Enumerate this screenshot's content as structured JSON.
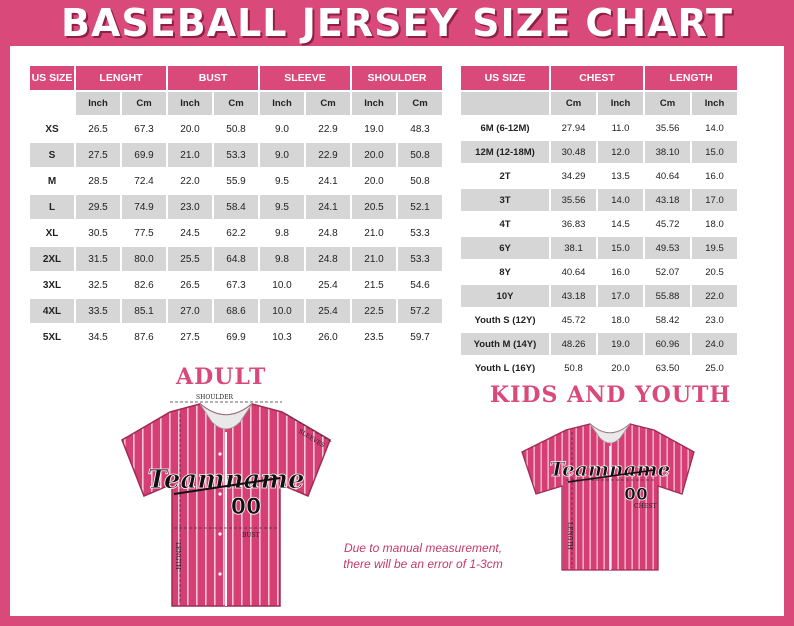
{
  "title": "BASEBALL JERSEY SIZE CHART",
  "adult": {
    "heading": "ADULT",
    "headers": [
      "US SIZE",
      "LENGHT",
      "BUST",
      "SLEEVE",
      "SHOULDER"
    ],
    "subheaders": [
      "Inch",
      "Cm",
      "Inch",
      "Cm",
      "Inch",
      "Cm",
      "Inch",
      "Cm"
    ],
    "rows": [
      [
        "XS",
        "26.5",
        "67.3",
        "20.0",
        "50.8",
        "9.0",
        "22.9",
        "19.0",
        "48.3"
      ],
      [
        "S",
        "27.5",
        "69.9",
        "21.0",
        "53.3",
        "9.0",
        "22.9",
        "20.0",
        "50.8"
      ],
      [
        "M",
        "28.5",
        "72.4",
        "22.0",
        "55.9",
        "9.5",
        "24.1",
        "20.0",
        "50.8"
      ],
      [
        "L",
        "29.5",
        "74.9",
        "23.0",
        "58.4",
        "9.5",
        "24.1",
        "20.5",
        "52.1"
      ],
      [
        "XL",
        "30.5",
        "77.5",
        "24.5",
        "62.2",
        "9.8",
        "24.8",
        "21.0",
        "53.3"
      ],
      [
        "2XL",
        "31.5",
        "80.0",
        "25.5",
        "64.8",
        "9.8",
        "24.8",
        "21.0",
        "53.3"
      ],
      [
        "3XL",
        "32.5",
        "82.6",
        "26.5",
        "67.3",
        "10.0",
        "25.4",
        "21.5",
        "54.6"
      ],
      [
        "4XL",
        "33.5",
        "85.1",
        "27.0",
        "68.6",
        "10.0",
        "25.4",
        "22.5",
        "57.2"
      ],
      [
        "5XL",
        "34.5",
        "87.6",
        "27.5",
        "69.9",
        "10.3",
        "26.0",
        "23.5",
        "59.7"
      ]
    ],
    "diagram": {
      "shoulder": "SHOULDER",
      "sleeves": "SLEEVES",
      "bust": "BUST",
      "length": "LENGTH",
      "team": "Teamname",
      "number": "00"
    }
  },
  "kids": {
    "heading": "KIDS AND YOUTH",
    "headers": [
      "US SIZE",
      "CHEST",
      "LENGTH"
    ],
    "subheaders": [
      "Cm",
      "Inch",
      "Cm",
      "Inch"
    ],
    "rows": [
      [
        "6M (6-12M)",
        "27.94",
        "11.0",
        "35.56",
        "14.0"
      ],
      [
        "12M (12-18M)",
        "30.48",
        "12.0",
        "38.10",
        "15.0"
      ],
      [
        "2T",
        "34.29",
        "13.5",
        "40.64",
        "16.0"
      ],
      [
        "3T",
        "35.56",
        "14.0",
        "43.18",
        "17.0"
      ],
      [
        "4T",
        "36.83",
        "14.5",
        "45.72",
        "18.0"
      ],
      [
        "6Y",
        "38.1",
        "15.0",
        "49.53",
        "19.5"
      ],
      [
        "8Y",
        "40.64",
        "16.0",
        "52.07",
        "20.5"
      ],
      [
        "10Y",
        "43.18",
        "17.0",
        "55.88",
        "22.0"
      ],
      [
        "Youth S (12Y)",
        "45.72",
        "18.0",
        "58.42",
        "23.0"
      ],
      [
        "Youth M (14Y)",
        "48.26",
        "19.0",
        "60.96",
        "24.0"
      ],
      [
        "Youth L (16Y)",
        "50.8",
        "20.0",
        "63.50",
        "25.0"
      ]
    ],
    "diagram": {
      "chest": "CHEST",
      "length": "LENGTH",
      "team": "Teamname",
      "number": "00"
    }
  },
  "note": "Due to manual measurement, there will be an error of 1-3cm",
  "colors": {
    "brand": "#d9497a",
    "row_alt": "#d6d6d6",
    "jersey": "#d63f73"
  }
}
